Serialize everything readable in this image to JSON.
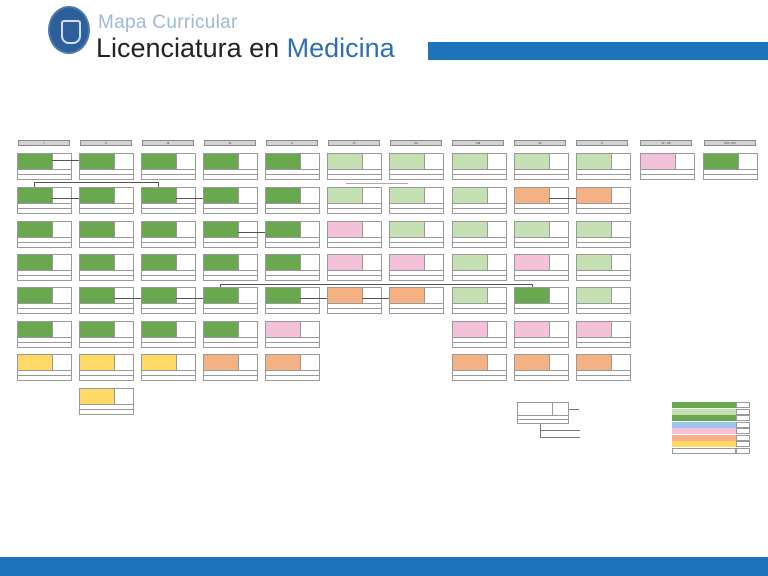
{
  "header": {
    "subtitle": "Mapa Curricular",
    "title_prefix": "Licenciatura en ",
    "title_highlight": "Medicina"
  },
  "semesters": [
    "I",
    "II",
    "III",
    "IV",
    "V",
    "VI",
    "VII",
    "VIII",
    "IX",
    "X",
    "XI / XII",
    "XIII / XIV"
  ],
  "colors": {
    "brand_blue": "#1e74bb",
    "core": "#6aa84f",
    "core_light": "#c5e0b3",
    "pink": "#f4c2d8",
    "orange": "#f4b183",
    "yellow": "#ffd966"
  }
}
